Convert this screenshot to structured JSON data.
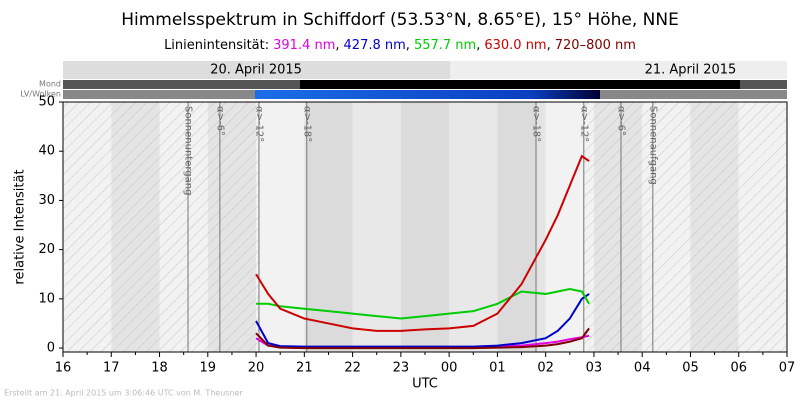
{
  "chart_data": {
    "type": "line",
    "title": "Himmelsspektrum in Schiffdorf (53.53°N, 8.65°E), 15° Höhe, NNE",
    "legend_title": "Linienintensität:",
    "legend_separator": ",",
    "x_label": "UTC",
    "y_label": "relative Intensität",
    "bar_labels": [
      "Mond",
      "LV/Wolken"
    ],
    "date_labels": [
      {
        "x": 20,
        "label": "20. April 2015"
      },
      {
        "x": 29,
        "label": "21. April 2015"
      }
    ],
    "footer": "Erstellt am 21. April 2015 um 3:06:46 UTC von M. Theusner",
    "annotations": [
      {
        "x": 18.59,
        "label": "Sonnenuntergang"
      },
      {
        "x": 19.25,
        "label": "α>-6°"
      },
      {
        "x": 20.06,
        "label": "α>-12°"
      },
      {
        "x": 21.05,
        "label": "α>-18°"
      },
      {
        "x": 25.8,
        "label": "α>-18°"
      },
      {
        "x": 26.79,
        "label": "α>-12°"
      },
      {
        "x": 27.56,
        "label": "α>-6°"
      },
      {
        "x": 28.22,
        "label": "Sonnenaufgang"
      }
    ],
    "x": [
      20,
      20.25,
      20.5,
      21,
      21.5,
      22,
      22.5,
      23,
      23.5,
      24,
      24.5,
      25,
      25.5,
      26,
      26.25,
      26.5,
      26.75,
      26.9
    ],
    "series": [
      {
        "name": "391.4 nm",
        "color": "#e000e0",
        "values": [
          2,
          0.5,
          0.3,
          0.2,
          0.2,
          0.2,
          0.2,
          0.2,
          0.2,
          0.2,
          0.2,
          0.3,
          0.5,
          1,
          1.3,
          1.8,
          2.2,
          2.5
        ]
      },
      {
        "name": "427.8 nm",
        "color": "#0000cc",
        "values": [
          5.5,
          1,
          0.4,
          0.3,
          0.3,
          0.3,
          0.3,
          0.3,
          0.3,
          0.3,
          0.3,
          0.5,
          1,
          2,
          3.5,
          6,
          10,
          11
        ]
      },
      {
        "name": "557.7 nm",
        "color": "#00cc00",
        "values": [
          9,
          9,
          8.5,
          8,
          7.5,
          7,
          6.5,
          6,
          6.5,
          7,
          7.5,
          9,
          11.5,
          11,
          11.5,
          12,
          11.5,
          9
        ]
      },
      {
        "name": "630.0 nm",
        "color": "#cc0000",
        "values": [
          15,
          11,
          8,
          6,
          5,
          4,
          3.5,
          3.5,
          3.8,
          4,
          4.5,
          7,
          13,
          22,
          27,
          33,
          39,
          38
        ]
      },
      {
        "name": "720–800 nm",
        "color": "#800000",
        "values": [
          3,
          0.5,
          0.1,
          0,
          0,
          0,
          0,
          0,
          0,
          0,
          0,
          0.1,
          0.2,
          0.5,
          0.8,
          1.3,
          2,
          4
        ]
      }
    ],
    "xlim": [
      16,
      31
    ],
    "xticks": [
      16,
      17,
      18,
      19,
      20,
      21,
      22,
      23,
      {
        "value": 24,
        "label": "00"
      },
      {
        "value": 25,
        "label": "01"
      },
      {
        "value": 26,
        "label": "02"
      },
      {
        "value": 27,
        "label": "03"
      },
      {
        "value": 28,
        "label": "04"
      },
      {
        "value": 29,
        "label": "05"
      },
      {
        "value": 30,
        "label": "06"
      },
      {
        "value": 31,
        "label": "07"
      }
    ],
    "ylim": [
      -0.8,
      50
    ],
    "yticks": [
      0,
      10,
      20,
      30,
      40,
      50
    ]
  }
}
